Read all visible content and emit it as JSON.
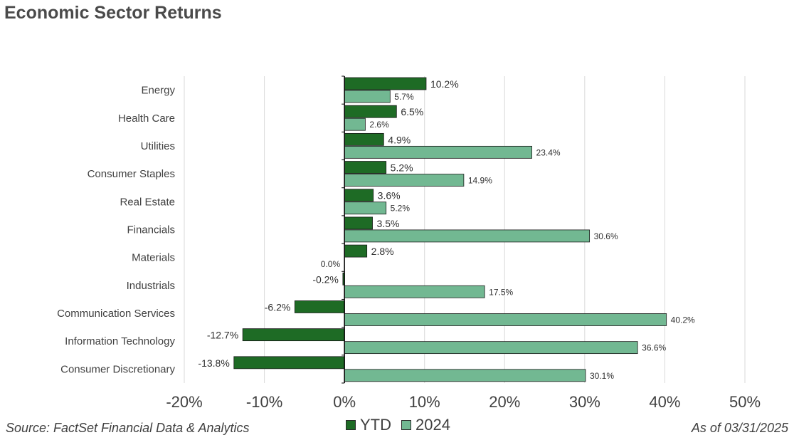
{
  "title": "Economic Sector Returns",
  "source": "Source: FactSet Financial Data & Analytics",
  "as_of": "As of 03/31/2025",
  "colors": {
    "ytd": "#1e6b25",
    "y2024": "#72b892",
    "grid": "#d9d9d9",
    "axis": "#000000"
  },
  "chart_data": {
    "type": "bar",
    "orientation": "horizontal",
    "categories": [
      "Energy",
      "Health Care",
      "Utilities",
      "Consumer Staples",
      "Real Estate",
      "Financials",
      "Materials",
      "Industrials",
      "Communication Services",
      "Information Technology",
      "Consumer Discretionary"
    ],
    "series": [
      {
        "name": "YTD",
        "values": [
          10.2,
          6.5,
          4.9,
          5.2,
          3.6,
          3.5,
          2.8,
          -0.2,
          -6.2,
          -12.7,
          -13.8
        ],
        "labels": [
          "10.2%",
          "6.5%",
          "4.9%",
          "5.2%",
          "3.6%",
          "3.5%",
          "2.8%",
          "-0.2%",
          "-6.2%",
          "-12.7%",
          "-13.8%"
        ]
      },
      {
        "name": "2024",
        "values": [
          5.7,
          2.6,
          23.4,
          14.9,
          5.2,
          30.6,
          0.0,
          17.5,
          40.2,
          36.6,
          30.1
        ],
        "labels": [
          "5.7%",
          "2.6%",
          "23.4%",
          "14.9%",
          "5.2%",
          "30.6%",
          "0.0%",
          "17.5%",
          "40.2%",
          "36.6%",
          "30.1%"
        ]
      }
    ],
    "xlim": [
      -20,
      50
    ],
    "xticks": [
      -20,
      -10,
      0,
      10,
      20,
      30,
      40,
      50
    ],
    "xtick_labels": [
      "-20%",
      "-10%",
      "0%",
      "10%",
      "20%",
      "30%",
      "40%",
      "50%"
    ],
    "grid": "vertical",
    "legend": "bottom-center"
  }
}
